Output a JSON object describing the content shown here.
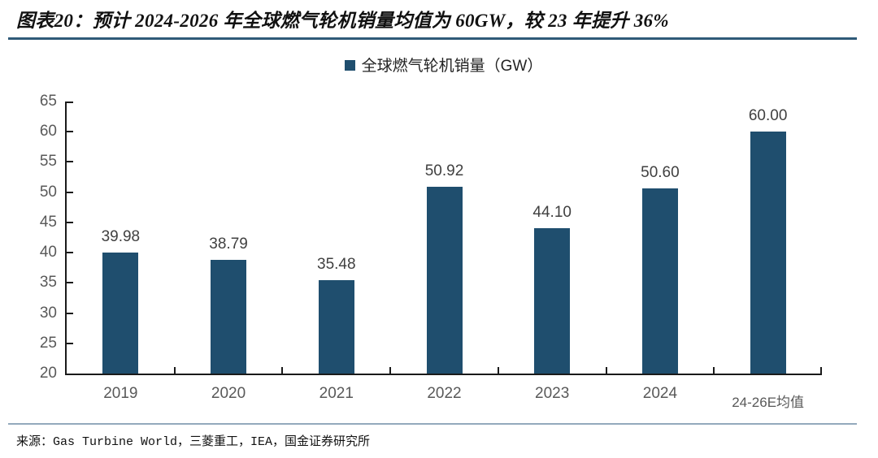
{
  "header": {
    "title": "图表20：预计 2024-2026 年全球燃气轮机销量均值为 60GW，较 23 年提升 36%"
  },
  "legend": {
    "label": "全球燃气轮机销量（GW）"
  },
  "chart_data": {
    "type": "bar",
    "title": "全球燃气轮机销量（GW）",
    "categories": [
      "2019",
      "2020",
      "2021",
      "2022",
      "2023",
      "2024",
      "24-26E均值"
    ],
    "values": [
      39.98,
      38.79,
      35.48,
      50.92,
      44.1,
      50.6,
      60.0
    ],
    "xlabel": "",
    "ylabel": "",
    "ylim": [
      20,
      65
    ],
    "ytick_step": 5,
    "grid": false,
    "legend_position": "top-center",
    "data_labels": true
  },
  "source": {
    "text": "来源：Gas Turbine World，三菱重工，IEA，国金证券研究所"
  },
  "colors": {
    "accent_bar": "#1F4E6E",
    "title_rule": "#2F5A78",
    "source_rule": "#93A9BC",
    "axis": "#1A1A1A",
    "tick_label": "#595959",
    "value_label": "#404040"
  }
}
